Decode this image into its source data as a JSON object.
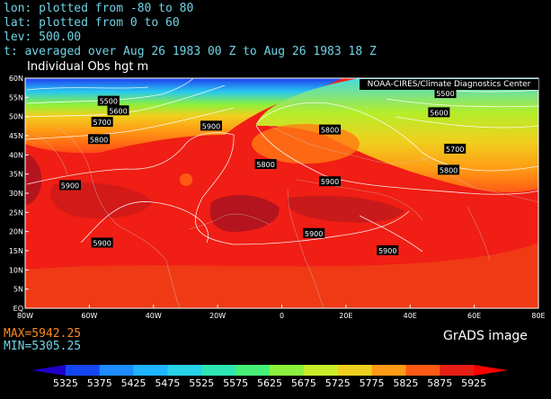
{
  "header": {
    "lon": "lon: plotted from -80 to 80",
    "lat": "lat: plotted from 0 to 60",
    "lev": "lev: 500.00",
    "time": "t: averaged over Aug 26 1983 00 Z to Aug 26 1983 18 Z"
  },
  "map_title": "Individual Obs hgt m",
  "credit": "NOAA-CIRES/Climate Diagnostics Center",
  "stats": {
    "max": "MAX=5942.25",
    "min": "MIN=5305.25"
  },
  "brand": "GrADS image",
  "axes": {
    "lat_labels": [
      "60N",
      "55N",
      "50N",
      "45N",
      "40N",
      "35N",
      "30N",
      "25N",
      "20N",
      "15N",
      "10N",
      "5N",
      "EQ"
    ],
    "lon_labels": [
      "80W",
      "60W",
      "40W",
      "20W",
      "0",
      "20E",
      "40E",
      "60E",
      "80E"
    ]
  },
  "contours": [
    {
      "text": "5500",
      "lon": -54,
      "lat": 54
    },
    {
      "text": "5600",
      "lon": -51,
      "lat": 51.5
    },
    {
      "text": "5700",
      "lon": -56,
      "lat": 48.5
    },
    {
      "text": "5800",
      "lon": -57,
      "lat": 44
    },
    {
      "text": "5900",
      "lon": -22,
      "lat": 47.5
    },
    {
      "text": "5800",
      "lon": 15,
      "lat": 46.5
    },
    {
      "text": "5800",
      "lon": -5,
      "lat": 37.5
    },
    {
      "text": "5900",
      "lon": 15,
      "lat": 33
    },
    {
      "text": "5900",
      "lon": -66,
      "lat": 32
    },
    {
      "text": "5900",
      "lon": -56,
      "lat": 17
    },
    {
      "text": "5900",
      "lon": 10,
      "lat": 19.5
    },
    {
      "text": "5900",
      "lon": 33,
      "lat": 15
    },
    {
      "text": "5500",
      "lon": 51,
      "lat": 56
    },
    {
      "text": "5600",
      "lon": 49,
      "lat": 51
    },
    {
      "text": "5700",
      "lon": 54,
      "lat": 41.5
    },
    {
      "text": "5800",
      "lon": 52,
      "lat": 36
    }
  ],
  "colorbar": {
    "values": [
      "5325",
      "5375",
      "5425",
      "5475",
      "5525",
      "5575",
      "5625",
      "5675",
      "5725",
      "5775",
      "5825",
      "5875",
      "5925"
    ],
    "colors": [
      "#1e00c8",
      "#1446f0",
      "#1e8cff",
      "#1eb4ff",
      "#28d2e6",
      "#2ee6b4",
      "#46f078",
      "#8cf03c",
      "#c8ee2a",
      "#f0d01e",
      "#ff9a14",
      "#ff5a14",
      "#e61e14",
      "#ff0000"
    ]
  }
}
